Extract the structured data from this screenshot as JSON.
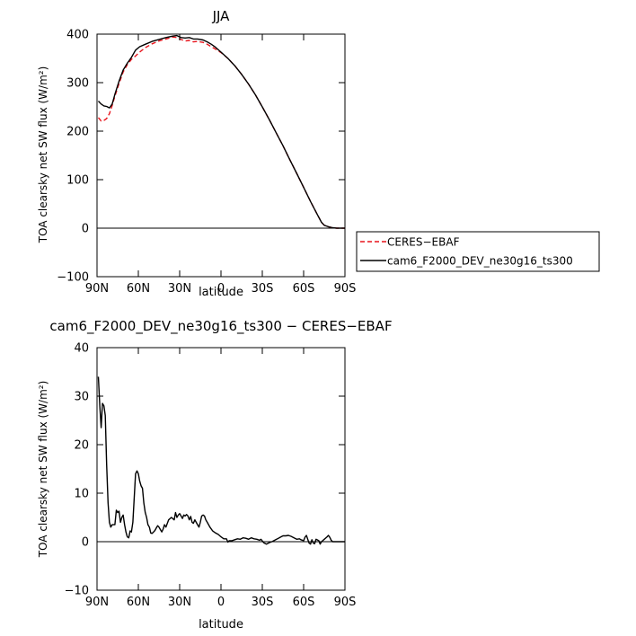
{
  "chart_data": [
    {
      "type": "line",
      "title": "JJA",
      "xlabel": "latitude",
      "ylabel": "TOA clearsky net SW flux (W/m²)",
      "xlim": [
        90,
        -90
      ],
      "ylim": [
        -100,
        400
      ],
      "x_ticks": [
        90,
        60,
        30,
        0,
        -30,
        -60,
        -90
      ],
      "x_tick_labels": [
        "90N",
        "60N",
        "30N",
        "0",
        "30S",
        "60S",
        "90S"
      ],
      "y_ticks": [
        -100,
        0,
        100,
        200,
        300,
        400
      ],
      "y_tick_labels": [
        "−100",
        "0",
        "100",
        "200",
        "300",
        "400"
      ],
      "legend_position": "right",
      "series": [
        {
          "name": "CERES−EBAF",
          "color": "#e8141c",
          "dash": "dashed",
          "points": [
            [
              89,
              228
            ],
            [
              87,
              221
            ],
            [
              85,
              222
            ],
            [
              83,
              226
            ],
            [
              81,
              236
            ],
            [
              79,
              253
            ],
            [
              77,
              272
            ],
            [
              74,
              298
            ],
            [
              71,
              322
            ],
            [
              68,
              337
            ],
            [
              65,
              348
            ],
            [
              62,
              355
            ],
            [
              59,
              363
            ],
            [
              55,
              372
            ],
            [
              50,
              380
            ],
            [
              45,
              386
            ],
            [
              40,
              390
            ],
            [
              35,
              394
            ],
            [
              32,
              393
            ],
            [
              29,
              389
            ],
            [
              26,
              386
            ],
            [
              23,
              387
            ],
            [
              20,
              384
            ],
            [
              17,
              385
            ],
            [
              13,
              383
            ],
            [
              10,
              379
            ],
            [
              7,
              374
            ],
            [
              4,
              369
            ],
            [
              0,
              362
            ],
            [
              -5,
              350
            ],
            [
              -10,
              335
            ],
            [
              -15,
              317
            ],
            [
              -20,
              297
            ],
            [
              -25,
              275
            ],
            [
              -30,
              250
            ],
            [
              -35,
              224
            ],
            [
              -40,
              197
            ],
            [
              -45,
              170
            ],
            [
              -50,
              141
            ],
            [
              -55,
              113
            ],
            [
              -60,
              84
            ],
            [
              -65,
              55
            ],
            [
              -70,
              28
            ],
            [
              -73,
              12
            ],
            [
              -75,
              6
            ],
            [
              -78,
              3
            ],
            [
              -81,
              1
            ],
            [
              -84,
              0
            ],
            [
              -87,
              0
            ],
            [
              -90,
              0
            ]
          ]
        },
        {
          "name": "cam6_F2000_DEV_ne30g16_ts300",
          "color": "#000000",
          "dash": "solid",
          "points": [
            [
              89,
              262
            ],
            [
              87,
              256
            ],
            [
              85,
              252
            ],
            [
              83,
              251
            ],
            [
              81,
              248
            ],
            [
              79,
              256
            ],
            [
              77,
              276
            ],
            [
              74,
              303
            ],
            [
              71,
              326
            ],
            [
              68,
              340
            ],
            [
              65,
              352
            ],
            [
              62,
              367
            ],
            [
              59,
              374
            ],
            [
              55,
              379
            ],
            [
              50,
              385
            ],
            [
              45,
              389
            ],
            [
              40,
              393
            ],
            [
              35,
              396
            ],
            [
              32,
              397
            ],
            [
              29,
              393
            ],
            [
              26,
              392
            ],
            [
              23,
              393
            ],
            [
              20,
              390
            ],
            [
              17,
              390
            ],
            [
              13,
              388
            ],
            [
              10,
              384
            ],
            [
              7,
              379
            ],
            [
              4,
              373
            ],
            [
              0,
              363
            ],
            [
              -5,
              350
            ],
            [
              -10,
              335
            ],
            [
              -15,
              317
            ],
            [
              -20,
              297
            ],
            [
              -25,
              275
            ],
            [
              -30,
              250
            ],
            [
              -35,
              224
            ],
            [
              -40,
              197
            ],
            [
              -45,
              170
            ],
            [
              -50,
              141
            ],
            [
              -55,
              113
            ],
            [
              -60,
              84
            ],
            [
              -65,
              55
            ],
            [
              -70,
              28
            ],
            [
              -73,
              12
            ],
            [
              -75,
              6
            ],
            [
              -78,
              3
            ],
            [
              -81,
              1
            ],
            [
              -84,
              0
            ],
            [
              -87,
              0
            ],
            [
              -90,
              0
            ]
          ]
        }
      ]
    },
    {
      "type": "line",
      "title": "cam6_F2000_DEV_ne30g16_ts300 − CERES−EBAF",
      "xlabel": "latitude",
      "ylabel": "TOA clearsky net SW flux (W/m²)",
      "xlim": [
        90,
        -90
      ],
      "ylim": [
        -10,
        40
      ],
      "x_ticks": [
        90,
        60,
        30,
        0,
        -30,
        -60,
        -90
      ],
      "x_tick_labels": [
        "90N",
        "60N",
        "30N",
        "0",
        "30S",
        "60S",
        "90S"
      ],
      "y_ticks": [
        -10,
        0,
        10,
        20,
        30,
        40
      ],
      "y_tick_labels": [
        "−10",
        "0",
        "10",
        "20",
        "30",
        "40"
      ],
      "series": [
        {
          "color": "#000000",
          "dash": "solid",
          "points": [
            [
              89,
              34
            ],
            [
              88,
              28
            ],
            [
              87,
              23.5
            ],
            [
              86,
              28.5
            ],
            [
              85,
              28
            ],
            [
              84,
              26
            ],
            [
              83,
              16
            ],
            [
              82,
              8
            ],
            [
              81,
              4
            ],
            [
              80,
              3
            ],
            [
              79,
              3.5
            ],
            [
              78,
              3.5
            ],
            [
              77,
              3.5
            ],
            [
              76,
              6.5
            ],
            [
              75,
              6
            ],
            [
              74,
              6.3
            ],
            [
              73,
              4
            ],
            [
              72,
              5
            ],
            [
              71,
              5.5
            ],
            [
              70,
              3.5
            ],
            [
              69,
              2
            ],
            [
              68,
              1
            ],
            [
              67,
              0.8
            ],
            [
              66,
              2.2
            ],
            [
              65,
              2
            ],
            [
              64,
              4
            ],
            [
              63,
              9
            ],
            [
              62,
              14
            ],
            [
              61,
              14.6
            ],
            [
              60,
              14
            ],
            [
              59,
              12.5
            ],
            [
              58,
              11.5
            ],
            [
              57,
              11
            ],
            [
              56,
              8
            ],
            [
              55,
              6
            ],
            [
              54,
              5
            ],
            [
              53,
              3.5
            ],
            [
              52,
              3
            ],
            [
              51,
              1.8
            ],
            [
              50,
              1.7
            ],
            [
              49,
              2
            ],
            [
              48,
              2.3
            ],
            [
              47,
              2.8
            ],
            [
              46,
              3.3
            ],
            [
              45,
              3
            ],
            [
              44,
              2.5
            ],
            [
              43,
              2
            ],
            [
              42,
              2.6
            ],
            [
              41,
              3.5
            ],
            [
              40,
              3
            ],
            [
              38,
              4.5
            ],
            [
              36,
              5
            ],
            [
              34,
              4.5
            ],
            [
              33,
              6
            ],
            [
              32,
              5
            ],
            [
              31,
              5.5
            ],
            [
              30,
              5.8
            ],
            [
              28,
              4.8
            ],
            [
              27,
              5.5
            ],
            [
              26,
              5.3
            ],
            [
              25,
              5.6
            ],
            [
              24,
              5.3
            ],
            [
              23,
              4.5
            ],
            [
              22,
              5.2
            ],
            [
              21,
              4
            ],
            [
              20,
              3.8
            ],
            [
              19,
              4.5
            ],
            [
              18,
              4
            ],
            [
              17,
              3.5
            ],
            [
              16,
              3
            ],
            [
              15,
              4
            ],
            [
              14,
              5.3
            ],
            [
              13,
              5.5
            ],
            [
              12,
              5.3
            ],
            [
              11,
              4.5
            ],
            [
              10,
              4
            ],
            [
              8,
              3
            ],
            [
              6,
              2.2
            ],
            [
              4,
              1.8
            ],
            [
              2,
              1.5
            ],
            [
              0,
              1
            ],
            [
              -2,
              0.6
            ],
            [
              -4,
              0.6
            ],
            [
              -5,
              -0.1
            ],
            [
              -6,
              0.2
            ],
            [
              -8,
              0.2
            ],
            [
              -10,
              0.4
            ],
            [
              -12,
              0.6
            ],
            [
              -14,
              0.5
            ],
            [
              -16,
              0.8
            ],
            [
              -18,
              0.7
            ],
            [
              -20,
              0.5
            ],
            [
              -22,
              0.8
            ],
            [
              -24,
              0.6
            ],
            [
              -26,
              0.5
            ],
            [
              -28,
              0.3
            ],
            [
              -29,
              0.5
            ],
            [
              -31,
              -0.2
            ],
            [
              -33,
              -0.5
            ],
            [
              -35,
              -0.2
            ],
            [
              -37,
              0
            ],
            [
              -39,
              0.3
            ],
            [
              -41,
              0.6
            ],
            [
              -43,
              0.9
            ],
            [
              -45,
              1.2
            ],
            [
              -47,
              1.2
            ],
            [
              -49,
              1.3
            ],
            [
              -51,
              1.1
            ],
            [
              -53,
              0.8
            ],
            [
              -55,
              0.5
            ],
            [
              -57,
              0.6
            ],
            [
              -58,
              0.4
            ],
            [
              -60,
              0.2
            ],
            [
              -61,
              0.9
            ],
            [
              -62,
              1.3
            ],
            [
              -63,
              0.5
            ],
            [
              -64,
              -0.3
            ],
            [
              -65,
              -0.5
            ],
            [
              -66,
              0.4
            ],
            [
              -67,
              -0.3
            ],
            [
              -68,
              -0.4
            ],
            [
              -69,
              0.5
            ],
            [
              -71,
              0.2
            ],
            [
              -72,
              -0.5
            ],
            [
              -73,
              0
            ],
            [
              -75,
              0.5
            ],
            [
              -77,
              1
            ],
            [
              -78,
              1.3
            ],
            [
              -79,
              0.9
            ],
            [
              -80,
              0.3
            ],
            [
              -81,
              0
            ],
            [
              -84,
              0
            ],
            [
              -87,
              0
            ],
            [
              -90,
              0
            ]
          ]
        }
      ]
    }
  ]
}
